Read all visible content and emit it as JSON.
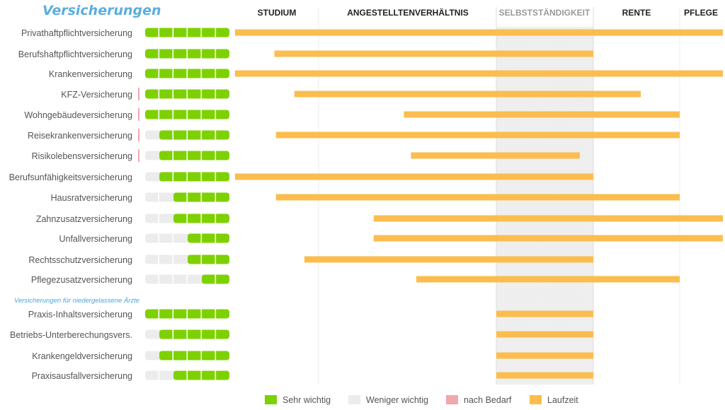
{
  "chart_data": {
    "type": "bar",
    "title": "Versicherungen",
    "subtitle": "Versicherungen für niedergelassene Ärzte",
    "phases": [
      "STUDIUM",
      "ANGESTELLTENVERHÄLTNIS",
      "SELBSTSTÄNDIGKEIT",
      "RENTE",
      "PFLEGE"
    ],
    "highlighted_phase": "SELBSTSTÄNDIGKEIT",
    "importance_scale": 6,
    "groups": [
      {
        "subtitle": "",
        "rows": [
          {
            "name": "Privathaftpflichtversicherung",
            "sehr_wichtig": 6,
            "nach_bedarf": false,
            "start": 0.0,
            "end": 5.0
          },
          {
            "name": "Berufshaftpflichtversicherung",
            "sehr_wichtig": 6,
            "nach_bedarf": false,
            "start": 0.47,
            "end": 3.0
          },
          {
            "name": "Krankenversicherung",
            "sehr_wichtig": 6,
            "nach_bedarf": false,
            "start": 0.0,
            "end": 5.0
          },
          {
            "name": "KFZ-Versicherung",
            "sehr_wichtig": 6,
            "nach_bedarf": true,
            "start": 0.71,
            "end": 3.55
          },
          {
            "name": "Wohngebäudeversicherung",
            "sehr_wichtig": 6,
            "nach_bedarf": true,
            "start": 1.48,
            "end": 4.0
          },
          {
            "name": "Reisekrankenversicherung",
            "sehr_wichtig": 5,
            "nach_bedarf": true,
            "start": 0.49,
            "end": 4.0
          },
          {
            "name": "Risikolebensversicherung",
            "sehr_wichtig": 5,
            "nach_bedarf": true,
            "start": 1.52,
            "end": 2.86
          },
          {
            "name": "Berufsunfähigkeitsversicherung",
            "sehr_wichtig": 5,
            "nach_bedarf": false,
            "start": 0.0,
            "end": 3.0
          },
          {
            "name": "Hausratversicherung",
            "sehr_wichtig": 4,
            "nach_bedarf": false,
            "start": 0.49,
            "end": 4.0
          },
          {
            "name": "Zahnzusatzversicherung",
            "sehr_wichtig": 4,
            "nach_bedarf": false,
            "start": 1.31,
            "end": 5.0
          },
          {
            "name": "Unfallversicherung",
            "sehr_wichtig": 3,
            "nach_bedarf": false,
            "start": 1.31,
            "end": 5.0
          },
          {
            "name": "Rechtsschutzversicherung",
            "sehr_wichtig": 3,
            "nach_bedarf": false,
            "start": 0.83,
            "end": 3.0
          },
          {
            "name": "Pflegezusatzversicherung",
            "sehr_wichtig": 2,
            "nach_bedarf": false,
            "start": 1.55,
            "end": 4.0
          }
        ]
      },
      {
        "subtitle": "Versicherungen für niedergelassene Ärzte",
        "rows": [
          {
            "name": "Praxis-Inhaltsversicherung",
            "sehr_wichtig": 6,
            "nach_bedarf": false,
            "start": 2.0,
            "end": 3.0
          },
          {
            "name": "Betriebs-Unterberechungsvers.",
            "sehr_wichtig": 5,
            "nach_bedarf": false,
            "start": 2.0,
            "end": 3.0
          },
          {
            "name": "Krankengeldversicherung",
            "sehr_wichtig": 5,
            "nach_bedarf": false,
            "start": 2.0,
            "end": 3.0
          },
          {
            "name": "Praxisausfallversicherung",
            "sehr_wichtig": 4,
            "nach_bedarf": false,
            "start": 2.0,
            "end": 3.0
          }
        ]
      }
    ],
    "legend": [
      {
        "label": "Sehr wichtig",
        "color": "#7ed100"
      },
      {
        "label": "Weniger wichtig",
        "color": "#ececec"
      },
      {
        "label": "nach Bedarf",
        "color": "#f2a7ad"
      },
      {
        "label": "Laufzeit",
        "color": "#fbbd4e"
      }
    ],
    "legend_position": "bottom-center",
    "colors": {
      "sehr_wichtig": "#7ed100",
      "weniger_wichtig": "#ececec",
      "nach_bedarf": "#f2a7ad",
      "laufzeit": "#fbbd4e",
      "title": "#5aaedf"
    }
  }
}
